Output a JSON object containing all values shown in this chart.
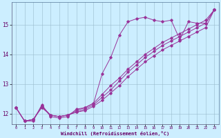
{
  "title": "",
  "xlabel": "Windchill (Refroidissement éolien,°C)",
  "ylabel": "",
  "bg_color": "#cceeff",
  "line_color": "#993399",
  "xlim": [
    -0.5,
    23.5
  ],
  "ylim": [
    11.65,
    15.75
  ],
  "yticks": [
    12,
    13,
    14,
    15
  ],
  "xticks": [
    0,
    1,
    2,
    3,
    4,
    5,
    6,
    7,
    8,
    9,
    10,
    11,
    12,
    13,
    14,
    15,
    16,
    17,
    18,
    19,
    20,
    21,
    22,
    23
  ],
  "series": [
    {
      "x": [
        0,
        1,
        2,
        3,
        4,
        5,
        6,
        7,
        8,
        9,
        10,
        11,
        12,
        13,
        14,
        15,
        16,
        17,
        18,
        19,
        20,
        21,
        22,
        23
      ],
      "y": [
        12.2,
        11.75,
        11.75,
        12.3,
        11.9,
        11.85,
        11.9,
        12.15,
        12.2,
        12.35,
        13.35,
        13.9,
        14.65,
        15.1,
        15.2,
        15.25,
        15.15,
        15.1,
        15.15,
        14.5,
        15.1,
        15.05,
        15.05,
        15.5
      ]
    },
    {
      "x": [
        0,
        1,
        2,
        3,
        4,
        5,
        6,
        7,
        8,
        9,
        10,
        11,
        12,
        13,
        14,
        15,
        16,
        17,
        18,
        19,
        20,
        21,
        22,
        23
      ],
      "y": [
        12.2,
        11.75,
        11.8,
        12.25,
        11.95,
        11.9,
        11.95,
        12.1,
        12.2,
        12.35,
        12.65,
        12.95,
        13.2,
        13.5,
        13.75,
        14.0,
        14.2,
        14.4,
        14.55,
        14.7,
        14.85,
        15.0,
        15.15,
        15.5
      ]
    },
    {
      "x": [
        0,
        1,
        2,
        3,
        4,
        5,
        6,
        7,
        8,
        9,
        10,
        11,
        12,
        13,
        14,
        15,
        16,
        17,
        18,
        19,
        20,
        21,
        22,
        23
      ],
      "y": [
        12.2,
        11.75,
        11.8,
        12.25,
        11.95,
        11.9,
        11.95,
        12.05,
        12.15,
        12.3,
        12.55,
        12.8,
        13.1,
        13.4,
        13.65,
        13.9,
        14.1,
        14.3,
        14.45,
        14.6,
        14.75,
        14.9,
        15.05,
        15.5
      ]
    },
    {
      "x": [
        0,
        1,
        2,
        3,
        4,
        5,
        6,
        7,
        8,
        9,
        10,
        11,
        12,
        13,
        14,
        15,
        16,
        17,
        18,
        19,
        20,
        21,
        22,
        23
      ],
      "y": [
        12.2,
        11.75,
        11.8,
        12.2,
        11.95,
        11.9,
        11.95,
        12.05,
        12.1,
        12.25,
        12.45,
        12.7,
        12.95,
        13.25,
        13.5,
        13.75,
        13.95,
        14.15,
        14.3,
        14.45,
        14.6,
        14.75,
        14.9,
        15.5
      ]
    }
  ]
}
